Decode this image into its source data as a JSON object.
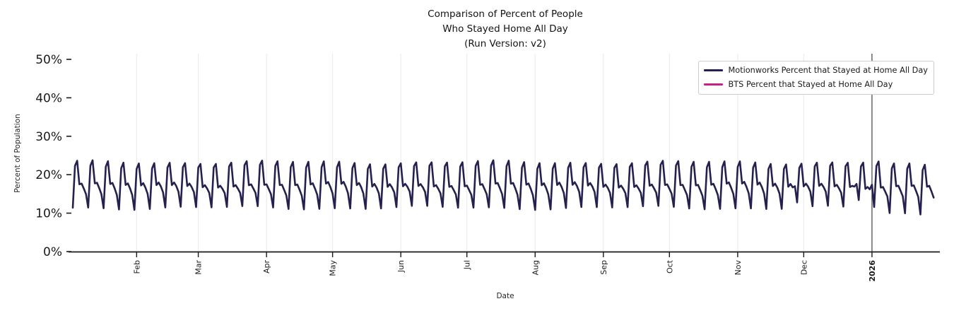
{
  "chart_data": {
    "type": "line",
    "title_lines": [
      "Comparison of Percent of People",
      "Who Stayed Home All Day",
      "(Run Version: v2)"
    ],
    "xlabel": "Date",
    "ylabel": "Percent of Population",
    "ylim": [
      0,
      51.5
    ],
    "grid": "vertical-only",
    "legend_position": "upper right",
    "yticks": [
      {
        "label": "0%",
        "value": 0
      },
      {
        "label": "10%",
        "value": 10
      },
      {
        "label": "20%",
        "value": 20
      },
      {
        "label": "30%",
        "value": 30
      },
      {
        "label": "40%",
        "value": 40
      },
      {
        "label": "50%",
        "value": 50
      }
    ],
    "x_range": {
      "start": "2025-01-03",
      "end": "2026-01-29",
      "frequency": "daily"
    },
    "xticks": [
      {
        "label": "Feb",
        "date": "2025-02-01",
        "emphasis": false
      },
      {
        "label": "Mar",
        "date": "2025-03-01",
        "emphasis": false
      },
      {
        "label": "Apr",
        "date": "2025-04-01",
        "emphasis": false
      },
      {
        "label": "May",
        "date": "2025-05-01",
        "emphasis": false
      },
      {
        "label": "Jun",
        "date": "2025-06-01",
        "emphasis": false
      },
      {
        "label": "Jul",
        "date": "2025-07-01",
        "emphasis": false
      },
      {
        "label": "Aug",
        "date": "2025-08-01",
        "emphasis": false
      },
      {
        "label": "Sep",
        "date": "2025-09-01",
        "emphasis": false
      },
      {
        "label": "Oct",
        "date": "2025-10-01",
        "emphasis": false
      },
      {
        "label": "Nov",
        "date": "2025-11-01",
        "emphasis": false
      },
      {
        "label": "Dec",
        "date": "2025-12-01",
        "emphasis": false
      },
      {
        "label": "2026",
        "date": "2026-01-01",
        "emphasis": true
      }
    ],
    "series": [
      {
        "name": "Motionworks Percent that Stayed at Home All Day",
        "color": "#24214f",
        "line_width": 2.6,
        "frequency": "daily",
        "approx_value_range": [
          9.5,
          23.7
        ],
        "weekly_pattern": {
          "Sun": 23.2,
          "Mon": 17.2,
          "Tue": 17.6,
          "Wed": 16.5,
          "Thu": 15.1,
          "Fri": 11.4,
          "Sat": 22.0
        },
        "jitter": {
          "amp1": 0.35,
          "freq1": 0.83,
          "amp2": 0.22,
          "freq2": 0.171
        },
        "overrides": {
          "2025-11-27": 17.0,
          "2025-11-28": 12.8,
          "2025-12-24": 16.9,
          "2025-12-25": 17.6,
          "2025-12-26": 13.4,
          "2025-12-29": 16.3,
          "2025-12-30": 16.8,
          "2025-12-31": 16.2,
          "2026-01-01": 17.4,
          "2026-01-02": 11.6
        },
        "late_period": {
          "start": "2026-01-05",
          "friday_delta": -1.5,
          "weekend_delta": -0.8,
          "weekday_delta": -0.6
        }
      },
      {
        "name": "BTS Percent that Stayed at Home All Day",
        "color": "#c91f87",
        "line_width": 2.6,
        "values": []
      }
    ],
    "colors": {
      "gridline": "#ebebeb",
      "year_gridline": "#404040",
      "axis": "#1a1a1a",
      "tick_label": "#1a1a1a"
    }
  }
}
